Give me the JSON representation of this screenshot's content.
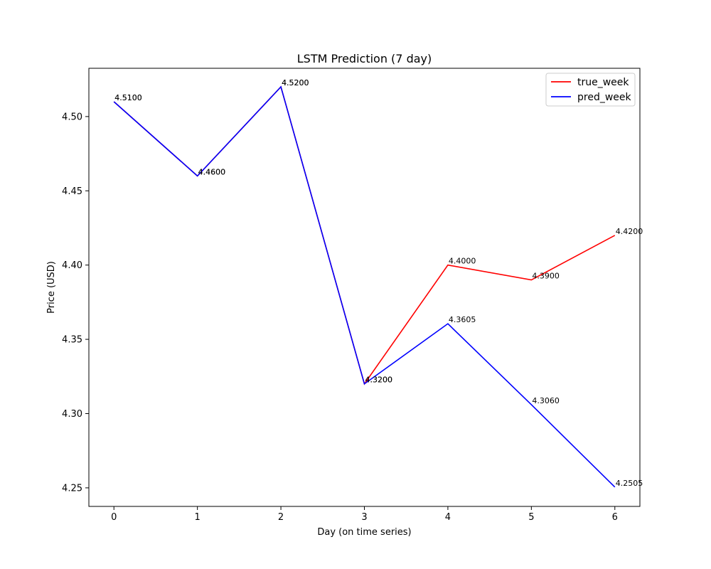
{
  "chart_data": {
    "type": "line",
    "title": "LSTM Prediction (7 day)",
    "xlabel": "Day (on time series)",
    "ylabel": "Price (USD)",
    "x": [
      0,
      1,
      2,
      3,
      4,
      5,
      6
    ],
    "xlim": [
      -0.3,
      6.3
    ],
    "ylim": [
      4.2375,
      4.5325
    ],
    "xticks": [
      0,
      1,
      2,
      3,
      4,
      5,
      6
    ],
    "yticks": [
      4.25,
      4.3,
      4.35,
      4.4,
      4.45,
      4.5
    ],
    "ytick_labels": [
      "4.25",
      "4.30",
      "4.35",
      "4.40",
      "4.45",
      "4.50"
    ],
    "grid": false,
    "legend_position": "top-right",
    "series": [
      {
        "name": "true_week",
        "color": "#ff0000",
        "values": [
          4.51,
          4.46,
          4.52,
          4.32,
          4.4,
          4.39,
          4.42
        ],
        "labels": [
          "4.5100",
          "4.4600",
          "4.5200",
          "4.3200",
          "4.4000",
          "4.3900",
          "4.4200"
        ]
      },
      {
        "name": "pred_week",
        "color": "#0000ff",
        "values": [
          4.51,
          4.46,
          4.52,
          4.32,
          4.3605,
          4.306,
          4.2505
        ],
        "labels": [
          "4.5100",
          "4.4600",
          "4.5200",
          "4.3200",
          "4.3605",
          "4.3060",
          "4.2505"
        ]
      }
    ]
  }
}
